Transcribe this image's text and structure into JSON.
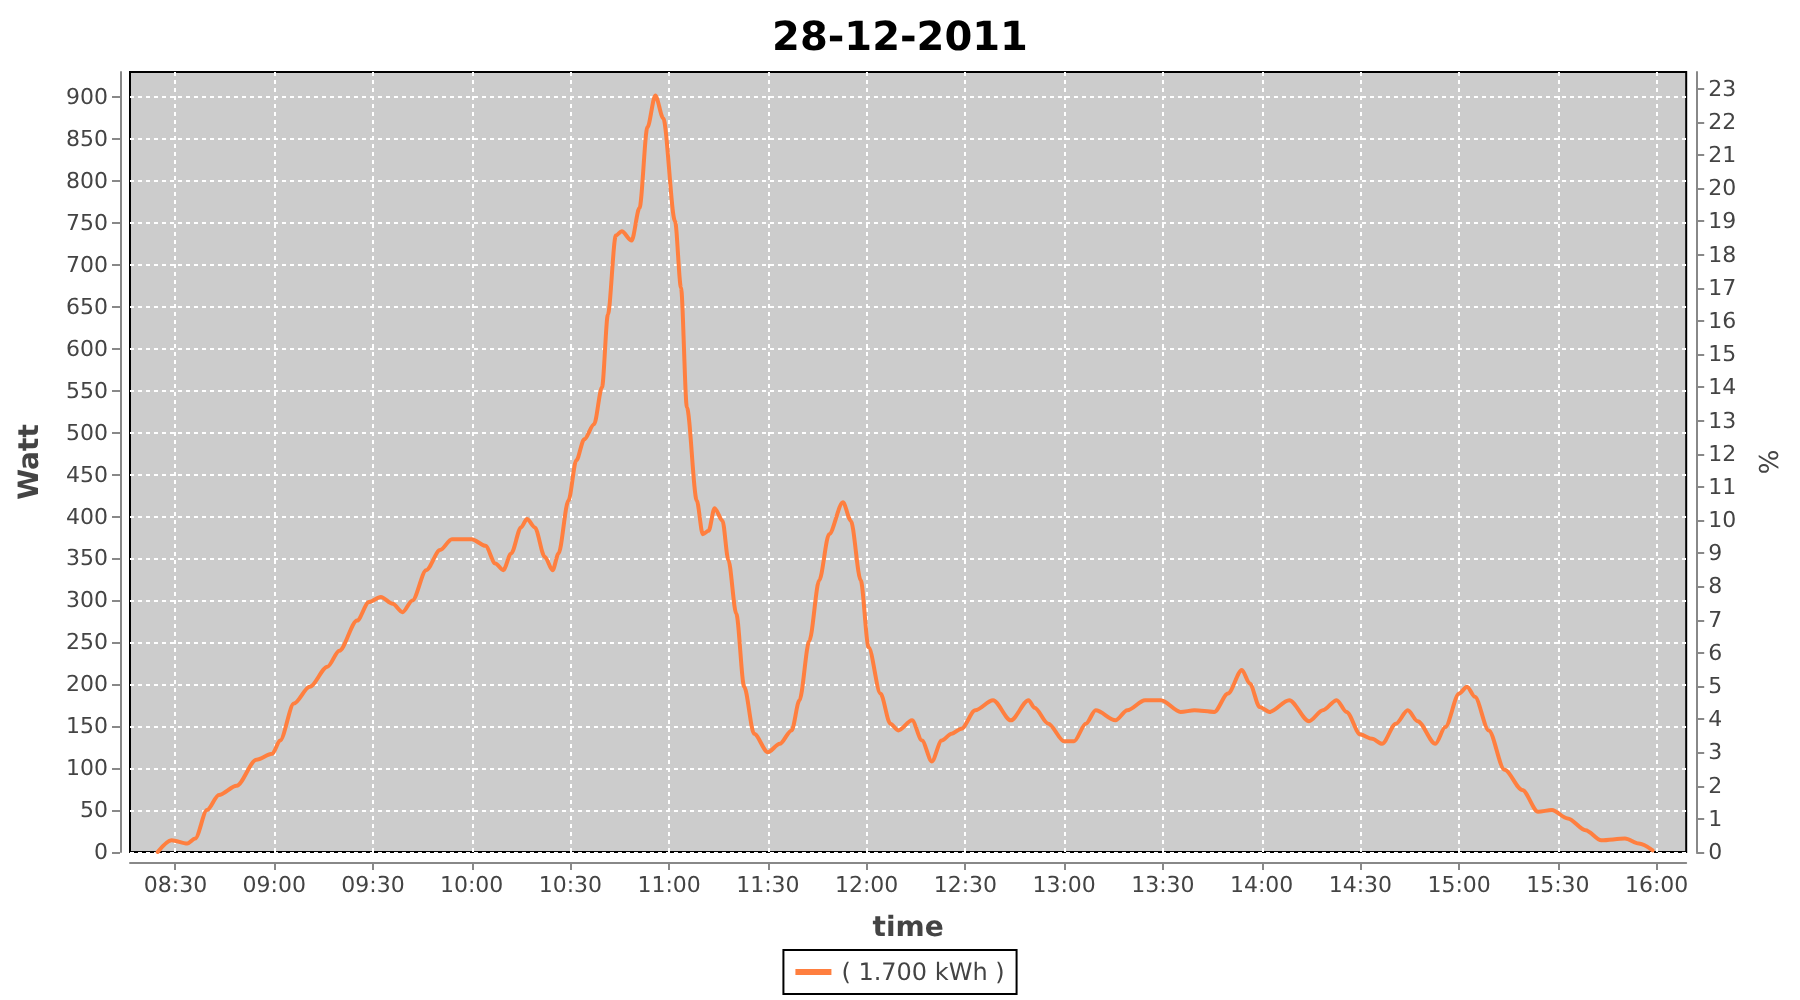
{
  "chart_data": {
    "type": "line",
    "title": "28-12-2011",
    "xlabel": "time",
    "ylabel": "Watt",
    "y2label": "%",
    "x": [
      8.41,
      8.48,
      8.56,
      8.6,
      8.66,
      8.72,
      8.81,
      8.91,
      8.99,
      9.03,
      9.1,
      9.18,
      9.27,
      9.33,
      9.42,
      9.48,
      9.54,
      9.6,
      9.65,
      9.7,
      9.77,
      9.84,
      9.9,
      10.0,
      10.07,
      10.12,
      10.16,
      10.2,
      10.25,
      10.28,
      10.32,
      10.37,
      10.41,
      10.44,
      10.49,
      10.53,
      10.57,
      10.62,
      10.66,
      10.69,
      10.73,
      10.76,
      10.81,
      10.85,
      10.89,
      10.93,
      10.97,
      11.03,
      11.06,
      11.09,
      11.14,
      11.17,
      11.2,
      11.23,
      11.27,
      11.3,
      11.34,
      11.38,
      11.43,
      11.5,
      11.56,
      11.62,
      11.66,
      11.71,
      11.76,
      11.81,
      11.88,
      11.92,
      11.97,
      12.01,
      12.07,
      12.12,
      12.16,
      12.23,
      12.28,
      12.33,
      12.38,
      12.43,
      12.48,
      12.55,
      12.64,
      12.73,
      12.82,
      12.85,
      12.92,
      13.0,
      13.05,
      13.11,
      13.16,
      13.26,
      13.32,
      13.41,
      13.49,
      13.59,
      13.66,
      13.76,
      13.83,
      13.9,
      13.94,
      13.99,
      14.04,
      14.14,
      14.24,
      14.31,
      14.38,
      14.43,
      14.5,
      14.56,
      14.61,
      14.68,
      14.74,
      14.79,
      14.88,
      14.93,
      15.0,
      15.04,
      15.08,
      15.15,
      15.23,
      15.32,
      15.4,
      15.47,
      15.55,
      15.64,
      15.72,
      15.84,
      15.91,
      15.98
    ],
    "series": [
      {
        "name": "( 1.700 kWh )",
        "color": "#ff7f3f",
        "values": [
          0,
          14,
          10,
          16,
          50,
          68,
          79,
          110,
          117,
          133,
          177,
          197,
          221,
          240,
          276,
          298,
          304,
          296,
          286,
          300,
          336,
          360,
          373,
          373,
          365,
          344,
          336,
          356,
          387,
          397,
          387,
          352,
          336,
          356,
          419,
          467,
          492,
          510,
          554,
          641,
          735,
          740,
          729,
          768,
          864,
          902,
          875,
          752,
          673,
          530,
          419,
          379,
          383,
          410,
          395,
          348,
          284,
          197,
          141,
          119,
          129,
          145,
          181,
          252,
          324,
          379,
          417,
          395,
          324,
          244,
          189,
          153,
          145,
          157,
          133,
          108,
          133,
          141,
          147,
          169,
          181,
          157,
          181,
          172,
          153,
          132,
          132,
          153,
          169,
          157,
          169,
          181,
          181,
          167,
          169,
          167,
          189,
          217,
          201,
          173,
          167,
          181,
          156,
          169,
          181,
          167,
          140,
          135,
          129,
          153,
          169,
          156,
          129,
          149,
          189,
          197,
          185,
          145,
          98,
          74,
          48,
          50,
          40,
          26,
          14,
          16,
          10,
          2
        ]
      }
    ],
    "xlim": [
      8.27,
      16.15
    ],
    "xticks": [
      {
        "value": 8.5,
        "label": "08:30"
      },
      {
        "value": 9,
        "label": "09:00"
      },
      {
        "value": 9.5,
        "label": "09:30"
      },
      {
        "value": 10,
        "label": "10:00"
      },
      {
        "value": 10.5,
        "label": "10:30"
      },
      {
        "value": 11,
        "label": "11:00"
      },
      {
        "value": 11.5,
        "label": "11:30"
      },
      {
        "value": 12,
        "label": "12:00"
      },
      {
        "value": 12.5,
        "label": "12:30"
      },
      {
        "value": 13,
        "label": "13:00"
      },
      {
        "value": 13.5,
        "label": "13:30"
      },
      {
        "value": 14,
        "label": "14:00"
      },
      {
        "value": 14.5,
        "label": "14:30"
      },
      {
        "value": 15,
        "label": "15:00"
      },
      {
        "value": 15.5,
        "label": "15:30"
      },
      {
        "value": 16,
        "label": "16:00"
      }
    ],
    "ylim": [
      0,
      930
    ],
    "yticks": [
      0,
      50,
      100,
      150,
      200,
      250,
      300,
      350,
      400,
      450,
      500,
      550,
      600,
      650,
      700,
      750,
      800,
      850,
      900
    ],
    "y2lim": [
      0,
      23.5
    ],
    "y2ticks": [
      0,
      1,
      2,
      3,
      4,
      5,
      6,
      7,
      8,
      9,
      10,
      11,
      12,
      13,
      14,
      15,
      16,
      17,
      18,
      19,
      20,
      21,
      22,
      23
    ],
    "grid": true,
    "legend": "bottom"
  }
}
